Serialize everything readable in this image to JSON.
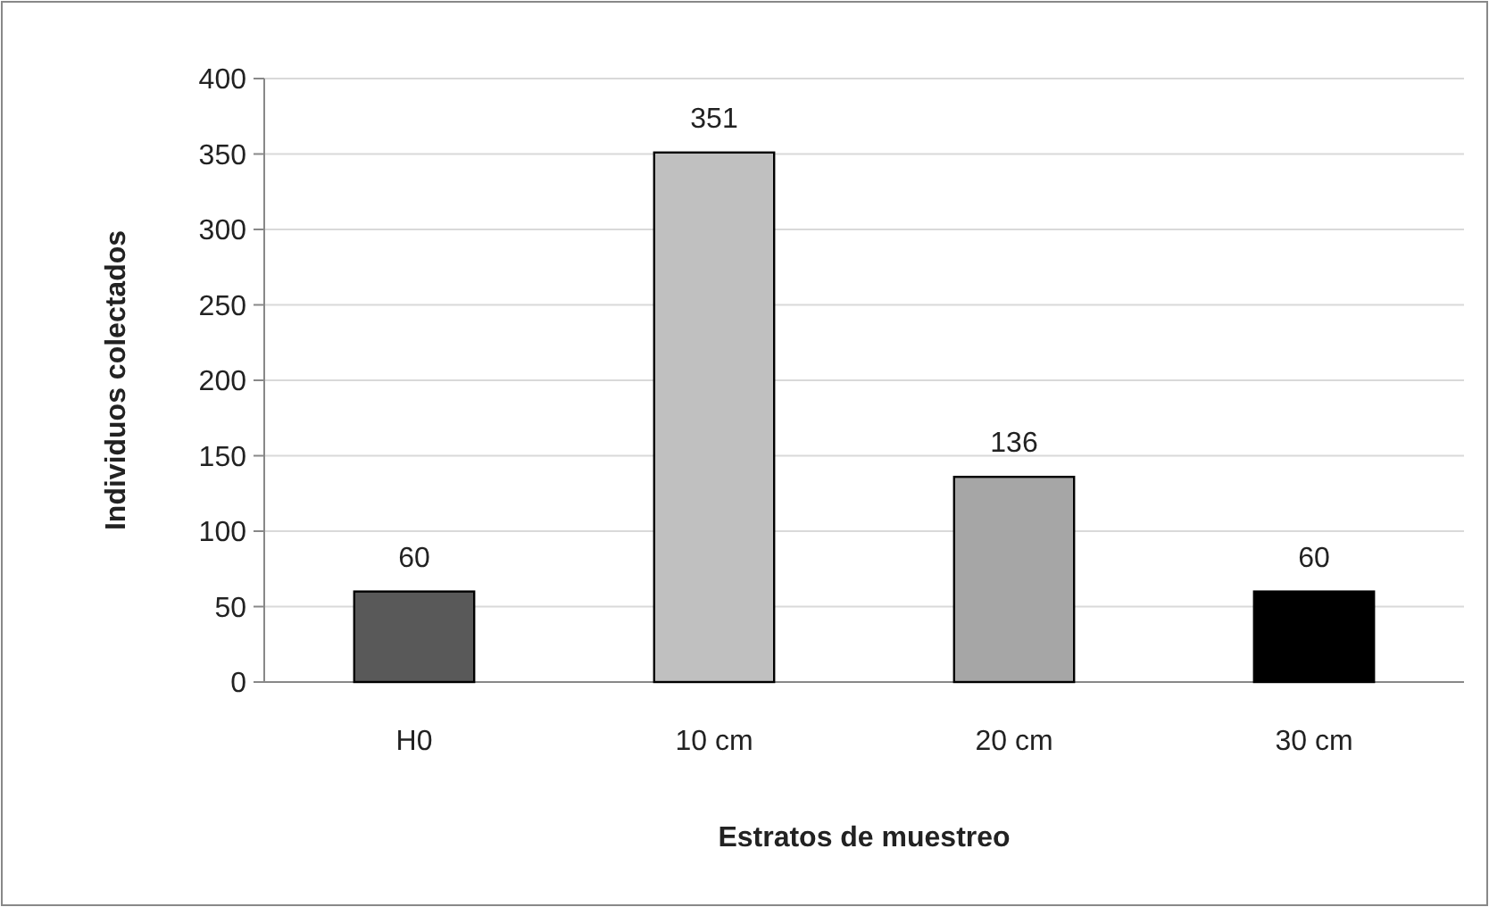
{
  "chart_data": {
    "type": "bar",
    "xlabel": "Estratos de muestreo",
    "ylabel": "Individuos colectados",
    "categories": [
      "H0",
      "10 cm",
      "20 cm",
      "30 cm"
    ],
    "values": [
      60,
      351,
      136,
      60
    ],
    "colors": [
      "#595959",
      "#c0c0c0",
      "#a6a6a6",
      "#000000"
    ],
    "ylim": [
      0,
      400
    ],
    "yticks": [
      0,
      50,
      100,
      150,
      200,
      250,
      300,
      350,
      400
    ],
    "grid": "y",
    "data_labels": true
  }
}
